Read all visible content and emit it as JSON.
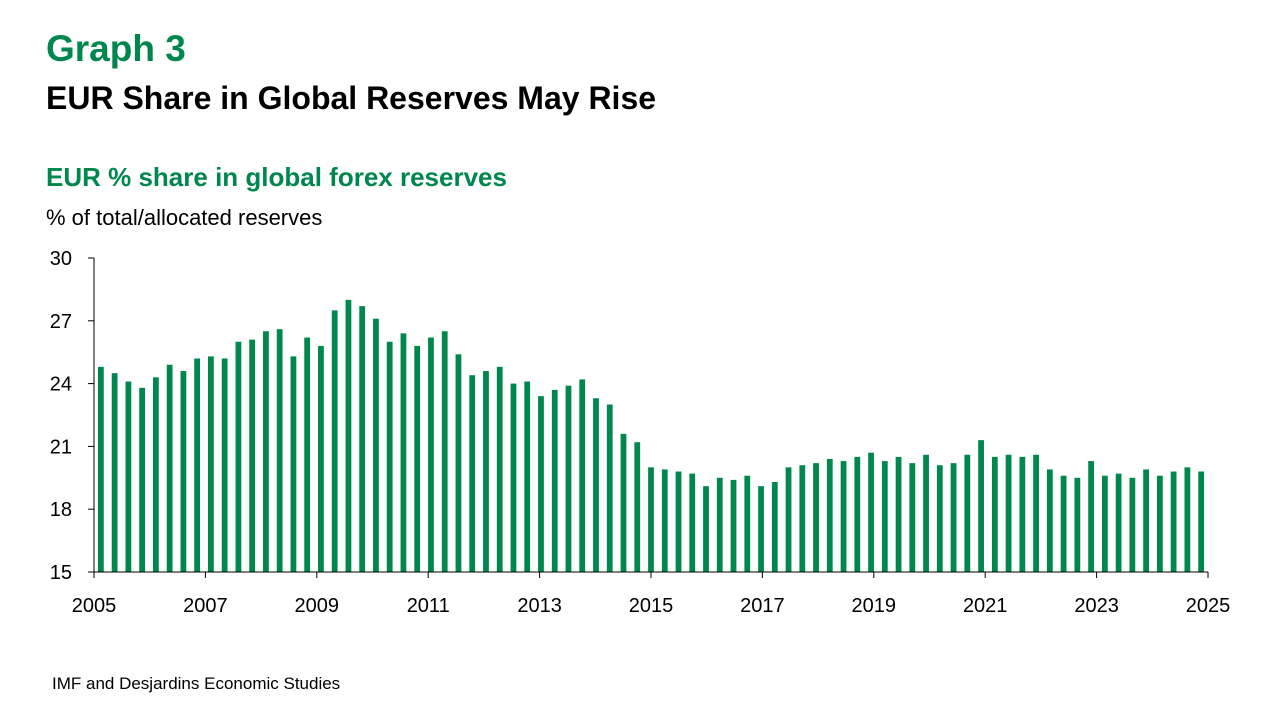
{
  "header": {
    "graph_number": "Graph 3",
    "graph_title": "EUR Share in Global Reserves May Rise"
  },
  "source": "IMF and Desjardins Economic Studies",
  "colors": {
    "accent": "#00874d",
    "bar": "#00874d"
  },
  "chart_data": {
    "type": "bar",
    "title": "EUR % share in global forex reserves",
    "ylabel": "% of total/allocated reserves",
    "xlabel": "",
    "frequency": "quarterly, 2005 Q1 to 2025 Q1",
    "ylim": [
      15,
      30
    ],
    "yticks": [
      15,
      18,
      21,
      24,
      27,
      30
    ],
    "xticks": [
      "2005",
      "2007",
      "2009",
      "2011",
      "2013",
      "2015",
      "2017",
      "2019",
      "2021",
      "2023",
      "2025"
    ],
    "grid": false,
    "legend": "none",
    "start_year": 2005,
    "end_year": 2025,
    "values": [
      24.8,
      24.5,
      24.1,
      23.8,
      24.3,
      24.9,
      24.6,
      25.2,
      25.3,
      25.2,
      26.0,
      26.1,
      26.5,
      26.6,
      25.3,
      26.2,
      25.8,
      27.5,
      28.0,
      27.7,
      27.1,
      26.0,
      26.4,
      25.8,
      26.2,
      26.5,
      25.4,
      24.4,
      24.6,
      24.8,
      24.0,
      24.1,
      23.4,
      23.7,
      23.9,
      24.2,
      23.3,
      23.0,
      21.6,
      21.2,
      20.0,
      19.9,
      19.8,
      19.7,
      19.1,
      19.5,
      19.4,
      19.6,
      19.1,
      19.3,
      20.0,
      20.1,
      20.2,
      20.4,
      20.3,
      20.5,
      20.7,
      20.3,
      20.5,
      20.2,
      20.6,
      20.1,
      20.2,
      20.6,
      21.3,
      20.5,
      20.6,
      20.5,
      20.6,
      19.9,
      19.6,
      19.5,
      20.3,
      19.6,
      19.7,
      19.5,
      19.9,
      19.6,
      19.8,
      20.0,
      19.8
    ]
  }
}
